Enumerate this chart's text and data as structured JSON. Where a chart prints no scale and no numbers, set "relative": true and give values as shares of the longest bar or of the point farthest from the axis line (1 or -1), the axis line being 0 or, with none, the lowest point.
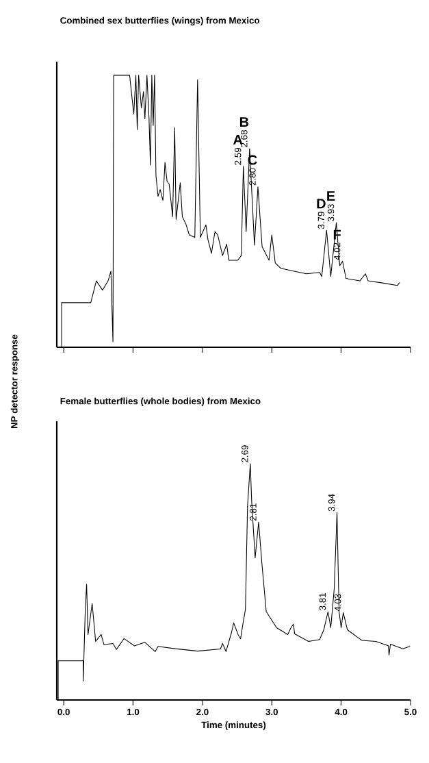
{
  "chart_data": [
    {
      "type": "line",
      "title": "Combined sex butterflies (wings) from Mexico",
      "ylabel": "NP detector response",
      "relative": true,
      "tick_labels": false,
      "xlim": [
        -0.1,
        5.0
      ],
      "xticks": [
        0,
        1,
        2,
        3,
        4,
        5
      ],
      "x": [
        -0.03,
        -0.03,
        0.39,
        0.47,
        0.56,
        0.64,
        0.68,
        0.71,
        0.72,
        0.95,
        1.01,
        1.04,
        1.06,
        1.08,
        1.12,
        1.15,
        1.17,
        1.2,
        1.23,
        1.25,
        1.27,
        1.29,
        1.31,
        1.33,
        1.36,
        1.39,
        1.43,
        1.46,
        1.49,
        1.52,
        1.57,
        1.6,
        1.62,
        1.68,
        1.71,
        1.76,
        1.81,
        1.89,
        1.93,
        1.97,
        2.05,
        2.08,
        2.13,
        2.18,
        2.22,
        2.29,
        2.35,
        2.38,
        2.51,
        2.56,
        2.59,
        2.63,
        2.68,
        2.75,
        2.8,
        2.86,
        2.96,
        3.0,
        3.05,
        3.13,
        3.31,
        3.5,
        3.69,
        3.72,
        3.79,
        3.85,
        3.93,
        3.98,
        4.02,
        4.07,
        4.27,
        4.35,
        4.39,
        4.58,
        4.81,
        4.84
      ],
      "series": [
        {
          "color": "#000000",
          "values": [
            0,
            0.164,
            0.164,
            0.244,
            0.21,
            0.244,
            0.28,
            0.02,
            1,
            1,
            0.857,
            1,
            0.8,
            1,
            0.88,
            0.94,
            0.84,
            1,
            0.84,
            0.67,
            1,
            0.815,
            1,
            0.63,
            0.555,
            0.58,
            0.54,
            0.68,
            0.61,
            0.6,
            0.48,
            0.807,
            0.47,
            0.605,
            0.48,
            0.454,
            0.413,
            0.404,
            0.983,
            0.404,
            0.45,
            0.395,
            0.345,
            0.425,
            0.413,
            0.337,
            0.379,
            0.32,
            0.32,
            0.337,
            0.665,
            0.425,
            0.73,
            0.375,
            0.59,
            0.37,
            0.32,
            0.413,
            0.31,
            0.29,
            0.28,
            0.27,
            0.275,
            0.26,
            0.43,
            0.26,
            0.458,
            0.3,
            0.316,
            0.253,
            0.244,
            0.27,
            0.244,
            0.237,
            0.227,
            0.237
          ]
        }
      ],
      "annotations": [
        {
          "text": "2.59",
          "x": 2.59,
          "y": 0.665
        },
        {
          "text": "A",
          "x": 2.59,
          "y": 0.665
        },
        {
          "text": "2.68",
          "x": 2.68,
          "y": 0.73
        },
        {
          "text": "B",
          "x": 2.68,
          "y": 0.73
        },
        {
          "text": "2.80",
          "x": 2.8,
          "y": 0.59
        },
        {
          "text": "C",
          "x": 2.8,
          "y": 0.59
        },
        {
          "text": "3.79",
          "x": 3.79,
          "y": 0.43
        },
        {
          "text": "D",
          "x": 3.79,
          "y": 0.43
        },
        {
          "text": "3.93",
          "x": 3.93,
          "y": 0.458
        },
        {
          "text": "E",
          "x": 3.93,
          "y": 0.458
        },
        {
          "text": "4.02",
          "x": 4.02,
          "y": 0.316
        },
        {
          "text": "F",
          "x": 4.02,
          "y": 0.316
        }
      ]
    },
    {
      "type": "line",
      "title": "Female butterflies (whole bodies) from Mexico",
      "xlabel": "Time (minutes)",
      "relative": true,
      "xlim": [
        -0.1,
        5.0
      ],
      "xticks": [
        {
          "value": 0,
          "label": "0.0"
        },
        {
          "value": 1,
          "label": "1.0"
        },
        {
          "value": 2,
          "label": "2.0"
        },
        {
          "value": 3,
          "label": "3.0"
        },
        {
          "value": 4,
          "label": "4.0"
        },
        {
          "value": 5,
          "label": "5.0"
        }
      ],
      "x": [
        -0.08,
        -0.08,
        0.28,
        0.28,
        0.29,
        0.31,
        0.33,
        0.35,
        0.41,
        0.46,
        0.54,
        0.58,
        0.71,
        0.76,
        0.87,
        1.02,
        1.17,
        1.32,
        1.36,
        1.61,
        1.93,
        2.26,
        2.29,
        2.34,
        2.42,
        2.45,
        2.52,
        2.55,
        2.58,
        2.62,
        2.65,
        2.69,
        2.71,
        2.76,
        2.81,
        2.86,
        2.92,
        3.07,
        3.23,
        3.27,
        3.31,
        3.33,
        3.53,
        3.69,
        3.75,
        3.81,
        3.85,
        3.9,
        3.94,
        3.97,
        4.0,
        4.03,
        4.09,
        4.3,
        4.5,
        4.68,
        4.69,
        4.71,
        4.89,
        4.99
      ],
      "series": [
        {
          "color": "#000000",
          "values": [
            0,
            0.166,
            0.166,
            0.08,
            0.17,
            0.375,
            0.49,
            0.277,
            0.408,
            0.248,
            0.277,
            0.234,
            0.239,
            0.214,
            0.26,
            0.229,
            0.244,
            0.205,
            0.227,
            0.217,
            0.207,
            0.216,
            0.239,
            0.205,
            0.287,
            0.326,
            0.273,
            0.259,
            0.316,
            0.384,
            0.82,
            1,
            0.84,
            0.602,
            0.753,
            0.568,
            0.374,
            0.306,
            0.277,
            0.302,
            0.321,
            0.28,
            0.248,
            0.256,
            0.297,
            0.374,
            0.306,
            0.471,
            0.793,
            0.374,
            0.306,
            0.37,
            0.297,
            0.252,
            0.248,
            0.23,
            0.19,
            0.236,
            0.217,
            0.227
          ]
        }
      ],
      "annotations": [
        {
          "text": "2.69",
          "x": 2.69,
          "y": 1
        },
        {
          "text": "2.81",
          "x": 2.81,
          "y": 0.753
        },
        {
          "text": "3.81",
          "x": 3.81,
          "y": 0.374
        },
        {
          "text": "3.94",
          "x": 3.94,
          "y": 0.793
        },
        {
          "text": "4.03",
          "x": 4.03,
          "y": 0.37
        }
      ]
    }
  ]
}
